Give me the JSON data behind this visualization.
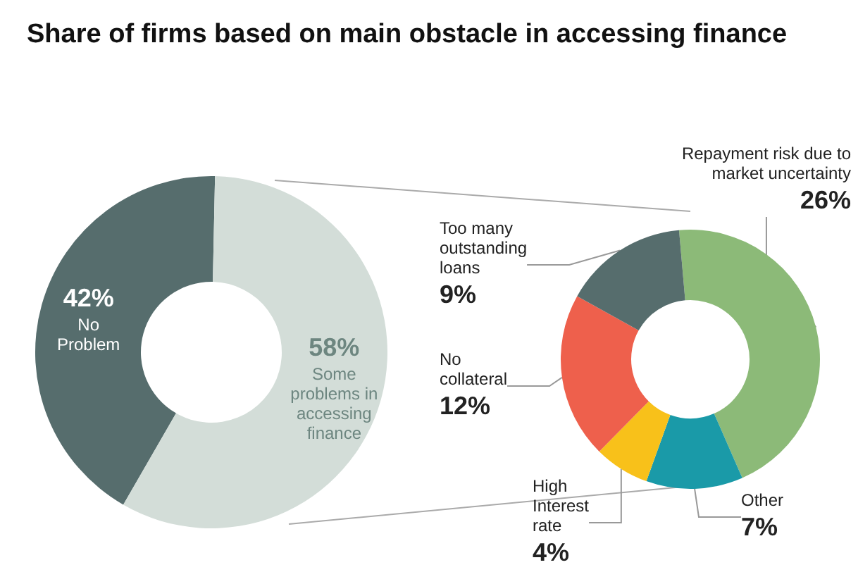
{
  "chart_data": [
    {
      "type": "donut",
      "title": "Share of firms based on main obstacle in accessing finance",
      "categories": [
        "No Problem",
        "Some problems in accessing finance"
      ],
      "values": [
        42,
        58
      ],
      "value_labels": [
        "42%",
        "58%"
      ],
      "data_labels": true,
      "colors": [
        "#566d6d",
        "#d3ddd8"
      ],
      "legend": false
    },
    {
      "type": "donut",
      "categories": [
        "Repayment risk due to market uncertainty",
        "Other",
        "High Interest rate",
        "No collateral",
        "Too many outstanding loans"
      ],
      "values": [
        26,
        7,
        4,
        12,
        9
      ],
      "value_labels": [
        "26%",
        "7%",
        "4%",
        "12%",
        "9%"
      ],
      "data_labels": true,
      "colors": [
        "#8cba78",
        "#1a9aa8",
        "#f8c11a",
        "#ee604c",
        "#566d6d"
      ],
      "legend": false
    }
  ]
}
